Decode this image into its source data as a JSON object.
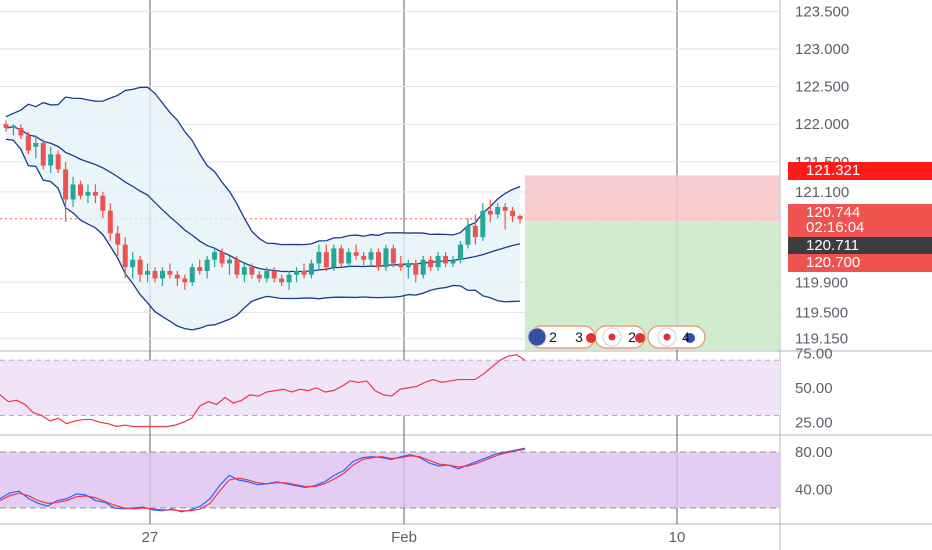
{
  "chart_data": [
    {
      "type": "candlestick",
      "x_ticks": [
        "27",
        "Feb",
        "10"
      ],
      "ylim": [
        119.0,
        123.65
      ],
      "y_ticks": [
        "123.500",
        "123.000",
        "122.500",
        "122.000",
        "121.500",
        "121.100",
        "119.900",
        "119.500",
        "119.150"
      ],
      "candles": [
        [
          122.0,
          122.05,
          121.9,
          121.95
        ],
        [
          121.95,
          122.0,
          121.85,
          121.98
        ],
        [
          121.95,
          122.0,
          121.8,
          121.85
        ],
        [
          121.85,
          121.9,
          121.6,
          121.65
        ],
        [
          121.7,
          121.85,
          121.55,
          121.75
        ],
        [
          121.75,
          121.8,
          121.4,
          121.45
        ],
        [
          121.45,
          121.7,
          121.35,
          121.6
        ],
        [
          121.6,
          121.65,
          121.35,
          121.4
        ],
        [
          121.4,
          121.5,
          120.7,
          121.0
        ],
        [
          121.0,
          121.3,
          120.9,
          121.2
        ],
        [
          121.2,
          121.25,
          121.0,
          121.05
        ],
        [
          121.05,
          121.2,
          120.95,
          121.1
        ],
        [
          121.1,
          121.2,
          120.95,
          121.05
        ],
        [
          121.05,
          121.1,
          120.75,
          120.85
        ],
        [
          120.85,
          120.95,
          120.45,
          120.55
        ],
        [
          120.55,
          120.65,
          120.25,
          120.4
        ],
        [
          120.4,
          120.5,
          119.95,
          120.1
        ],
        [
          120.1,
          120.3,
          119.95,
          120.2
        ],
        [
          120.2,
          120.25,
          119.9,
          120.0
        ],
        [
          120.0,
          120.15,
          119.9,
          120.05
        ],
        [
          120.05,
          120.1,
          119.9,
          119.95
        ],
        [
          119.95,
          120.1,
          119.85,
          120.05
        ],
        [
          120.05,
          120.15,
          119.95,
          120.0
        ],
        [
          120.0,
          120.05,
          119.85,
          119.95
        ],
        [
          119.95,
          120.0,
          119.8,
          119.9
        ],
        [
          119.9,
          120.15,
          119.85,
          120.1
        ],
        [
          120.1,
          120.2,
          120.0,
          120.05
        ],
        [
          120.05,
          120.25,
          119.95,
          120.2
        ],
        [
          120.2,
          120.35,
          120.1,
          120.3
        ],
        [
          120.3,
          120.35,
          120.1,
          120.15
        ],
        [
          120.15,
          120.25,
          120.0,
          120.2
        ],
        [
          120.2,
          120.25,
          119.95,
          120.0
        ],
        [
          120.0,
          120.15,
          119.9,
          120.1
        ],
        [
          120.1,
          120.15,
          119.95,
          120.0
        ],
        [
          120.0,
          120.05,
          119.9,
          119.95
        ],
        [
          119.95,
          120.1,
          119.9,
          120.05
        ],
        [
          120.05,
          120.1,
          119.9,
          119.95
        ],
        [
          119.95,
          120.0,
          119.85,
          119.9
        ],
        [
          119.9,
          120.05,
          119.8,
          120.0
        ],
        [
          120.0,
          120.1,
          119.9,
          120.05
        ],
        [
          120.05,
          120.15,
          119.95,
          120.0
        ],
        [
          120.0,
          120.2,
          119.95,
          120.15
        ],
        [
          120.15,
          120.4,
          120.05,
          120.3
        ],
        [
          120.3,
          120.4,
          120.05,
          120.1
        ],
        [
          120.1,
          120.4,
          120.05,
          120.35
        ],
        [
          120.35,
          120.4,
          120.1,
          120.15
        ],
        [
          120.15,
          120.35,
          120.1,
          120.3
        ],
        [
          120.3,
          120.4,
          120.2,
          120.25
        ],
        [
          120.25,
          120.3,
          120.1,
          120.2
        ],
        [
          120.2,
          120.35,
          120.1,
          120.3
        ],
        [
          120.3,
          120.35,
          120.05,
          120.1
        ],
        [
          120.1,
          120.4,
          120.05,
          120.35
        ],
        [
          120.35,
          120.4,
          120.1,
          120.15
        ],
        [
          120.15,
          120.25,
          120.05,
          120.1
        ],
        [
          120.1,
          120.2,
          119.95,
          120.15
        ],
        [
          120.15,
          120.2,
          119.9,
          120.0
        ],
        [
          120.0,
          120.25,
          119.95,
          120.2
        ],
        [
          120.2,
          120.25,
          120.05,
          120.1
        ],
        [
          120.1,
          120.3,
          120.05,
          120.25
        ],
        [
          120.25,
          120.3,
          120.1,
          120.15
        ],
        [
          120.15,
          120.25,
          120.1,
          120.2
        ],
        [
          120.2,
          120.45,
          120.15,
          120.4
        ],
        [
          120.4,
          120.75,
          120.35,
          120.65
        ],
        [
          120.65,
          120.8,
          120.4,
          120.5
        ],
        [
          120.5,
          120.95,
          120.45,
          120.85
        ],
        [
          120.85,
          121.0,
          120.7,
          120.8
        ],
        [
          120.8,
          120.95,
          120.75,
          120.9
        ],
        [
          120.9,
          120.95,
          120.6,
          120.85
        ],
        [
          120.85,
          120.9,
          120.7,
          120.78
        ],
        [
          120.78,
          120.8,
          120.68,
          120.74
        ]
      ],
      "last_price": "120.744",
      "countdown": "02:16:04",
      "position_entry": "120.711",
      "stop_level": "121.321",
      "target_level": "120.700",
      "event_counts": [
        "2",
        "3",
        "2",
        "4"
      ],
      "bands": [
        "upper",
        "middle",
        "lower"
      ]
    },
    {
      "type": "line",
      "y_ticks": [
        "75.00",
        "50.00",
        "25.00"
      ],
      "band": [
        30,
        70
      ],
      "ylim": [
        18,
        76
      ],
      "values": [
        45,
        40,
        41,
        38,
        32,
        30,
        26,
        28,
        24,
        26,
        27,
        27,
        25,
        24,
        22,
        23,
        22,
        22,
        22,
        22,
        22,
        23,
        25,
        28,
        37,
        40,
        38,
        43,
        39,
        41,
        45,
        44,
        47,
        48,
        49,
        47,
        49,
        48,
        50,
        47,
        48,
        51,
        55,
        54,
        55,
        48,
        45,
        44,
        49,
        50,
        51,
        54,
        56,
        54,
        55,
        56,
        56,
        56,
        60,
        65,
        70,
        73,
        74,
        70
      ],
      "stroke": "#f23645"
    },
    {
      "type": "line",
      "y_ticks": [
        "80.00",
        "40.00"
      ],
      "band": [
        20,
        80
      ],
      "ylim": [
        5,
        95
      ],
      "series": [
        {
          "stroke": "#2962ff",
          "values": [
            30,
            36,
            38,
            30,
            25,
            22,
            28,
            30,
            35,
            34,
            28,
            26,
            20,
            19,
            20,
            21,
            18,
            17,
            19,
            16,
            18,
            22,
            30,
            44,
            55,
            50,
            48,
            45,
            46,
            48,
            46,
            44,
            42,
            44,
            48,
            55,
            60,
            70,
            74,
            75,
            74,
            72,
            75,
            77,
            74,
            68,
            65,
            66,
            62,
            66,
            70,
            74,
            78,
            80,
            82,
            84
          ]
        },
        {
          "stroke": "#f23645",
          "values": [
            28,
            33,
            36,
            33,
            28,
            25,
            26,
            28,
            32,
            33,
            31,
            27,
            23,
            20,
            19,
            20,
            19,
            18,
            18,
            17,
            17,
            19,
            25,
            38,
            50,
            52,
            50,
            47,
            46,
            47,
            47,
            45,
            43,
            43,
            46,
            51,
            57,
            66,
            72,
            74,
            75,
            73,
            74,
            76,
            75,
            71,
            67,
            66,
            64,
            65,
            68,
            72,
            76,
            79,
            81,
            83
          ]
        }
      ]
    }
  ],
  "colors": {
    "up": "#26a69a",
    "down": "#ef5350",
    "band_line": "#1e3a8a",
    "band_fill": "#e3f2f7",
    "stop_zone": "#f9c6c9",
    "target_zone": "#c9e8c6",
    "tag_red": "#ff1a1a",
    "tag_salmon": "#ef5350",
    "tag_dark": "#3d3d3d",
    "rsi_fill": "#f0e4f7",
    "stoch_fill": "#dcc0f0"
  }
}
